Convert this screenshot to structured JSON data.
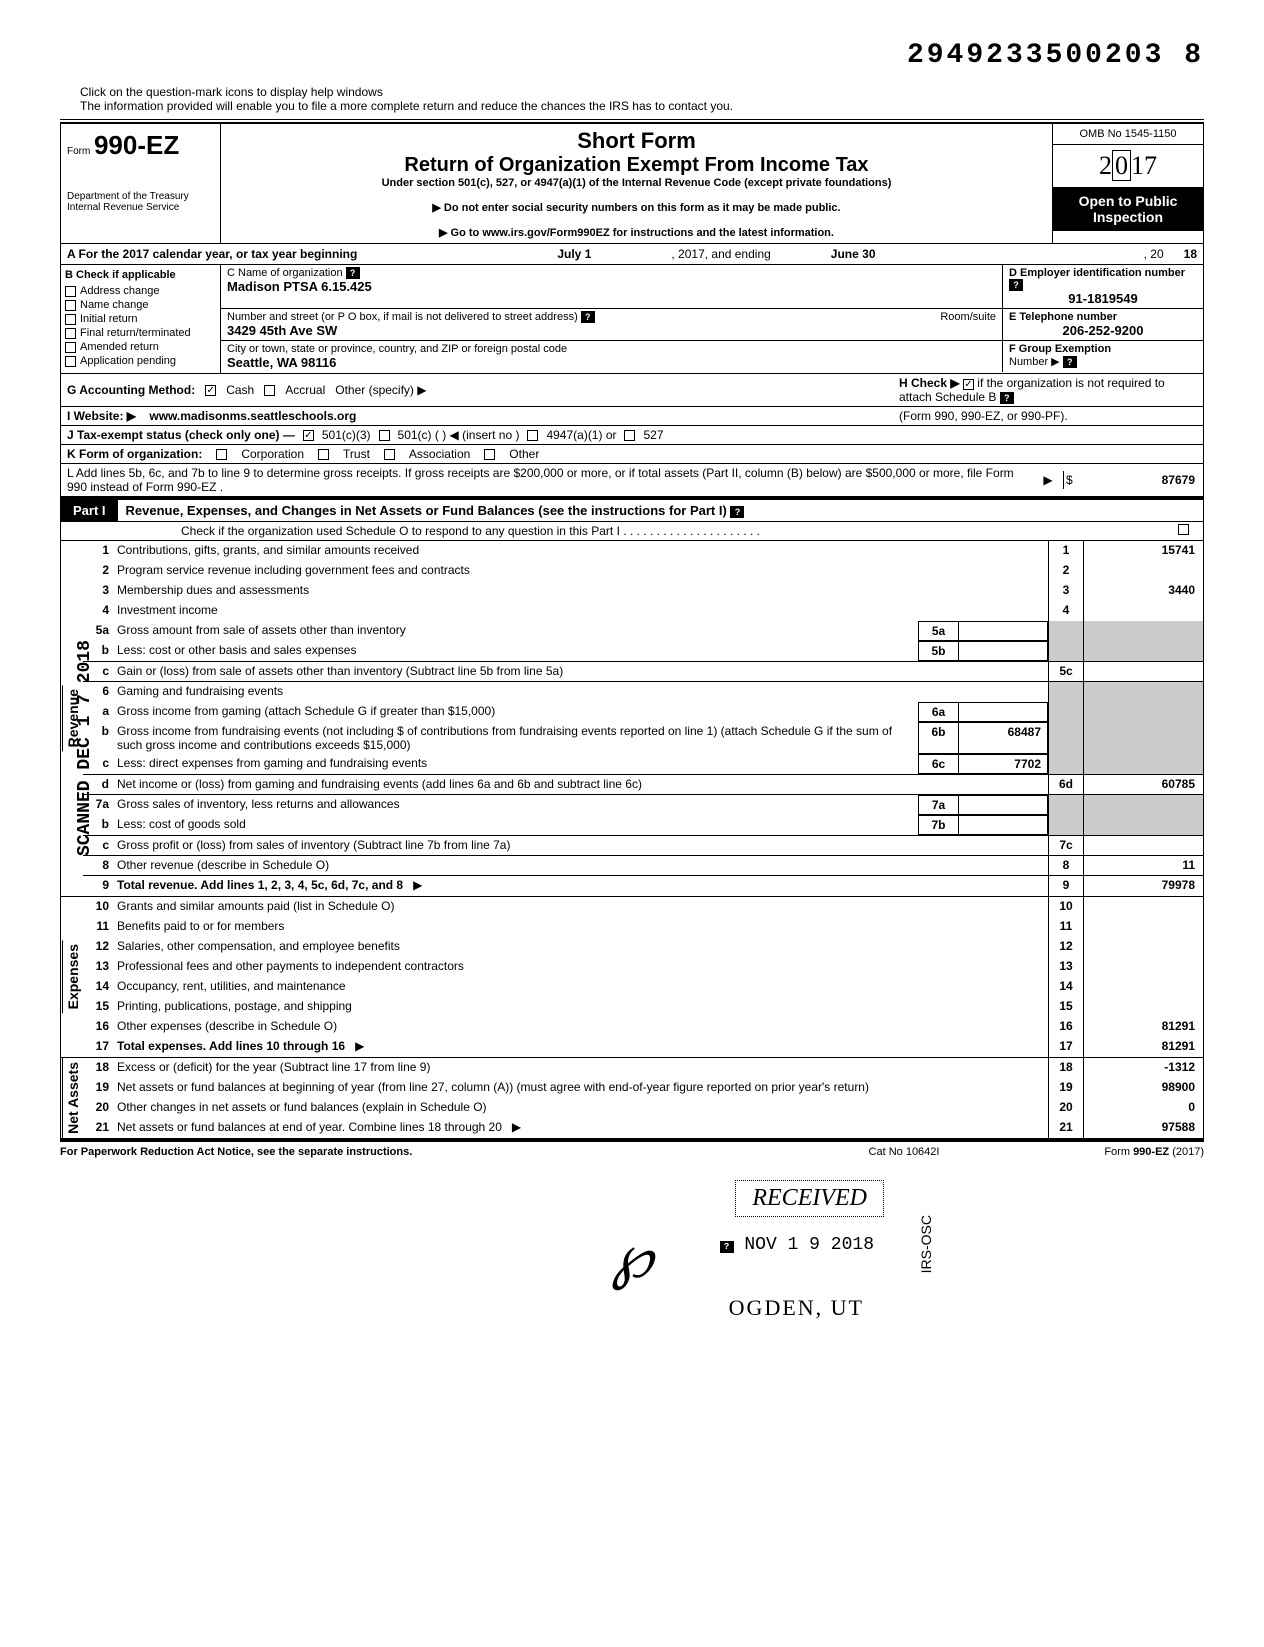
{
  "doc_id": "2949233500203 8",
  "help_text1": "Click on the question-mark icons to display help windows",
  "help_text2": "The information provided will enable you to file a more complete return and reduce the chances the IRS has to contact you.",
  "form": {
    "prefix": "Form",
    "number": "990-EZ",
    "dept": "Department of the Treasury\nInternal Revenue Service"
  },
  "header": {
    "short": "Short Form",
    "title": "Return of Organization Exempt From Income Tax",
    "sub": "Under section 501(c), 527, or 4947(a)(1) of the Internal Revenue Code (except private foundations)",
    "note1": "▶ Do not enter social security numbers on this form as it may be made public.",
    "note2": "▶ Go to www.irs.gov/Form990EZ for instructions and the latest information."
  },
  "right": {
    "omb": "OMB No 1545-1150",
    "year": "2017",
    "inspect1": "Open to Public",
    "inspect2": "Inspection"
  },
  "rowA": {
    "label": "A For the 2017 calendar year, or tax year beginning",
    "start": "July 1",
    "mid": ", 2017, and ending",
    "end_month": "June 30",
    "end_year_prefix": ", 20",
    "end_year": "18"
  },
  "colB": {
    "header": "B  Check if applicable",
    "items": [
      "Address change",
      "Name change",
      "Initial return",
      "Final return/terminated",
      "Amended return",
      "Application pending"
    ]
  },
  "c_name_label": "C Name of organization",
  "c_name": "Madison PTSA 6.15.425",
  "d_ein_label": "D Employer identification number",
  "d_ein": "91-1819549",
  "street_label": "Number and street (or P O box, if mail is not delivered to street address)",
  "room_label": "Room/suite",
  "street": "3429 45th Ave SW",
  "e_phone_label": "E Telephone number",
  "e_phone": "206-252-9200",
  "city_label": "City or town, state or province, country, and ZIP or foreign postal code",
  "city": "Seattle, WA 98116",
  "f_label": "F Group Exemption",
  "f_label2": "Number ▶",
  "g_label": "G  Accounting Method:",
  "g_cash": "Cash",
  "g_accrual": "Accrual",
  "g_other": "Other (specify) ▶",
  "h_label": "H  Check ▶",
  "h_text": "if the organization is not required to attach Schedule B",
  "h_text2": "(Form 990, 990-EZ, or 990-PF).",
  "i_label": "I   Website: ▶",
  "i_val": "www.madisonms.seattleschools.org",
  "j_label": "J  Tax-exempt status (check only one) —",
  "j_opts": [
    "501(c)(3)",
    "501(c) (          ) ◀ (insert no )",
    "4947(a)(1) or",
    "527"
  ],
  "k_label": "K  Form of organization:",
  "k_opts": [
    "Corporation",
    "Trust",
    "Association",
    "Other"
  ],
  "l_text": "L  Add lines 5b, 6c, and 7b to line 9 to determine gross receipts. If gross receipts are $200,000 or more, or if total assets (Part II, column (B) below) are $500,000 or more, file Form 990 instead of Form 990-EZ .",
  "l_arrow": "▶",
  "l_dollar": "$",
  "l_val": "87679",
  "part1": {
    "tag": "Part I",
    "title": "Revenue, Expenses, and Changes in Net Assets or Fund Balances (see the instructions for Part I)",
    "check_text": "Check if the organization used Schedule O to respond to any question in this Part I"
  },
  "sections": {
    "revenue": "Revenue",
    "expenses": "Expenses",
    "netassets": "Net Assets"
  },
  "lines": {
    "1": {
      "n": "1",
      "d": "Contributions, gifts, grants, and similar amounts received",
      "r": "1",
      "v": "15741"
    },
    "2": {
      "n": "2",
      "d": "Program service revenue including government fees and contracts",
      "r": "2",
      "v": ""
    },
    "3": {
      "n": "3",
      "d": "Membership dues and assessments",
      "r": "3",
      "v": "3440"
    },
    "4": {
      "n": "4",
      "d": "Investment income",
      "r": "4",
      "v": ""
    },
    "5a": {
      "n": "5a",
      "d": "Gross amount from sale of assets other than inventory",
      "mb": "5a",
      "mv": ""
    },
    "5b": {
      "n": "b",
      "d": "Less: cost or other basis and sales expenses",
      "mb": "5b",
      "mv": ""
    },
    "5c": {
      "n": "c",
      "d": "Gain or (loss) from sale of assets other than inventory (Subtract line 5b from line 5a)",
      "r": "5c",
      "v": ""
    },
    "6": {
      "n": "6",
      "d": "Gaming and fundraising events"
    },
    "6a": {
      "n": "a",
      "d": "Gross income from gaming (attach Schedule G if greater than $15,000)",
      "mb": "6a",
      "mv": ""
    },
    "6b": {
      "n": "b",
      "d": "Gross income from fundraising events (not including  $                    of contributions from fundraising events reported on line 1) (attach Schedule G if the sum of such gross income and contributions exceeds $15,000)",
      "mb": "6b",
      "mv": "68487"
    },
    "6c": {
      "n": "c",
      "d": "Less: direct expenses from gaming and fundraising events",
      "mb": "6c",
      "mv": "7702"
    },
    "6d": {
      "n": "d",
      "d": "Net income or (loss) from gaming and fundraising events (add lines 6a and 6b and subtract line 6c)",
      "r": "6d",
      "v": "60785"
    },
    "7a": {
      "n": "7a",
      "d": "Gross sales of inventory, less returns and allowances",
      "mb": "7a",
      "mv": ""
    },
    "7b": {
      "n": "b",
      "d": "Less: cost of goods sold",
      "mb": "7b",
      "mv": ""
    },
    "7c": {
      "n": "c",
      "d": "Gross profit or (loss) from sales of inventory (Subtract line 7b from line 7a)",
      "r": "7c",
      "v": ""
    },
    "8": {
      "n": "8",
      "d": "Other revenue (describe in Schedule O)",
      "r": "8",
      "v": "11"
    },
    "9": {
      "n": "9",
      "d": "Total revenue. Add lines 1, 2, 3, 4, 5c, 6d, 7c, and 8",
      "r": "9",
      "v": "79978",
      "bold": true,
      "arrow": "▶"
    },
    "10": {
      "n": "10",
      "d": "Grants and similar amounts paid (list in Schedule O)",
      "r": "10",
      "v": ""
    },
    "11": {
      "n": "11",
      "d": "Benefits paid to or for members",
      "r": "11",
      "v": ""
    },
    "12": {
      "n": "12",
      "d": "Salaries, other compensation, and employee benefits",
      "r": "12",
      "v": ""
    },
    "13": {
      "n": "13",
      "d": "Professional fees and other payments to independent contractors",
      "r": "13",
      "v": ""
    },
    "14": {
      "n": "14",
      "d": "Occupancy, rent, utilities, and maintenance",
      "r": "14",
      "v": ""
    },
    "15": {
      "n": "15",
      "d": "Printing, publications, postage, and shipping",
      "r": "15",
      "v": ""
    },
    "16": {
      "n": "16",
      "d": "Other expenses (describe in Schedule O)",
      "r": "16",
      "v": "81291"
    },
    "17": {
      "n": "17",
      "d": "Total expenses. Add lines 10 through 16",
      "r": "17",
      "v": "81291",
      "bold": true,
      "arrow": "▶"
    },
    "18": {
      "n": "18",
      "d": "Excess or (deficit) for the year (Subtract line 17 from line 9)",
      "r": "18",
      "v": "-1312"
    },
    "19": {
      "n": "19",
      "d": "Net assets or fund balances at beginning of year (from line 27, column (A)) (must agree with end-of-year figure reported on prior year's return)",
      "r": "19",
      "v": "98900"
    },
    "20": {
      "n": "20",
      "d": "Other changes in net assets or fund balances (explain in Schedule O)",
      "r": "20",
      "v": "0"
    },
    "21": {
      "n": "21",
      "d": "Net assets or fund balances at end of year. Combine lines 18 through 20",
      "r": "21",
      "v": "97588",
      "arrow": "▶"
    }
  },
  "footer": {
    "f1": "For Paperwork Reduction Act Notice, see the separate instructions.",
    "f2": "Cat No 10642I",
    "f3": "Form 990-EZ (2017)"
  },
  "stamps": {
    "scanned": "SCANNED DEC 1 7 2018",
    "received": "RECEIVED",
    "nov": "NOV 1 9 2018",
    "ogden": "OGDEN, UT",
    "irsosc": "IRS-OSC"
  },
  "colors": {
    "text": "#000000",
    "bg": "#ffffff",
    "black_bg": "#000000",
    "shade": "#cccccc"
  }
}
